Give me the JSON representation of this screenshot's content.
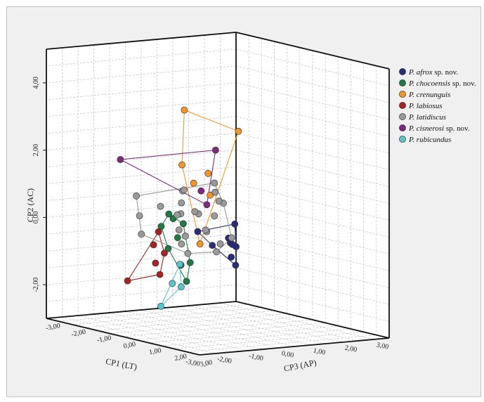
{
  "chart_data": {
    "type": "scatter",
    "projection": "3d",
    "axes": {
      "x": {
        "label": "CP1 (LT)",
        "ticks": [
          "-3,00",
          "-2,00",
          "-1,00",
          "0,00",
          "1,00",
          "2,00",
          "3,00"
        ],
        "range": [
          -3,
          3
        ]
      },
      "y": {
        "label": "CP2 (AC)",
        "ticks": [
          "-2,00",
          "0,00",
          "2,00",
          "4,00"
        ],
        "range": [
          -3,
          5
        ]
      },
      "z": {
        "label": "CP3 (AP)",
        "ticks": [
          "3,00",
          "2,00",
          "1,00",
          "0,00",
          "-1,00",
          "-2,00",
          "-3,00"
        ],
        "range": [
          -3,
          3
        ]
      }
    },
    "grid": true,
    "legend_position": "right",
    "series": [
      {
        "name": "P. afrox",
        "suffix": " sp. nov.",
        "color": "#2b2d78",
        "hull": true,
        "points": [
          [
            0.7,
            0.0,
            -0.2
          ],
          [
            0.5,
            -0.4,
            -0.2
          ],
          [
            0.4,
            -0.5,
            0.0
          ],
          [
            0.5,
            -0.6,
            0.1
          ],
          [
            0.0,
            -1.0,
            0.7
          ],
          [
            -0.3,
            -0.7,
            0.9
          ],
          [
            -0.9,
            -0.3,
            0.9
          ],
          [
            -1.2,
            0.1,
            0.7
          ],
          [
            0.3,
            -0.5,
            0.2
          ]
        ]
      },
      {
        "name": "P. chocoensis",
        "suffix": " sp. nov.",
        "color": "#1f7a46",
        "hull": true,
        "points": [
          [
            -0.9,
            -0.1,
            -1.1
          ],
          [
            -0.5,
            0.2,
            -1.3
          ],
          [
            -0.2,
            0.0,
            -1.5
          ],
          [
            -0.3,
            -0.5,
            -1.2
          ],
          [
            -0.6,
            -0.8,
            -1.2
          ],
          [
            -0.6,
            -1.2,
            -0.7
          ],
          [
            -0.1,
            -1.8,
            -1.1
          ],
          [
            0.5,
            -1.4,
            -1.7
          ],
          [
            0.2,
            -0.2,
            -1.6
          ]
        ]
      },
      {
        "name": "P. crenunguis",
        "suffix": "",
        "color": "#f0962b",
        "hull": true,
        "points": [
          [
            0.8,
            3.0,
            -2.3
          ],
          [
            1.3,
            2.6,
            -0.8
          ],
          [
            0.0,
            0.9,
            -0.3
          ],
          [
            0.0,
            1.6,
            -1.4
          ],
          [
            -0.4,
            -0.5,
            -0.2
          ],
          [
            -0.2,
            1.2,
            -0.7
          ],
          [
            0.1,
            1.5,
            -0.5
          ]
        ]
      },
      {
        "name": "P. labiosus",
        "suffix": "",
        "color": "#a32525",
        "hull": true,
        "points": [
          [
            -0.5,
            -0.4,
            -1.7
          ],
          [
            -0.9,
            -0.7,
            -1.4
          ],
          [
            -1.0,
            -1.2,
            -1.2
          ],
          [
            -0.7,
            -1.6,
            -1.4
          ],
          [
            -1.4,
            -1.8,
            -1.8
          ],
          [
            -0.8,
            -0.9,
            -1.1
          ]
        ]
      },
      {
        "name": "P. latidiscus",
        "suffix": "",
        "color": "#9a9a9a",
        "hull": true,
        "points": [
          [
            -0.8,
            0.6,
            -2.2
          ],
          [
            -0.7,
            0.0,
            -2.2
          ],
          [
            -0.8,
            -0.5,
            -2.0
          ],
          [
            -0.2,
            0.2,
            -1.2
          ],
          [
            0.1,
            0.8,
            -1.5
          ],
          [
            -0.1,
            0.5,
            -1.3
          ],
          [
            -0.5,
            -0.2,
            -0.9
          ],
          [
            -0.5,
            -0.6,
            -0.8
          ],
          [
            -0.3,
            -0.9,
            -0.8
          ],
          [
            -0.3,
            -0.4,
            -0.9
          ],
          [
            0.2,
            0.2,
            -1.0
          ],
          [
            0.3,
            -0.3,
            -0.8
          ],
          [
            0.7,
            0.1,
            -1.0
          ],
          [
            0.5,
            0.6,
            -0.4
          ],
          [
            0.3,
            1.2,
            -0.5
          ],
          [
            0.6,
            -0.4,
            -0.2
          ],
          [
            0.1,
            -0.2,
            -0.6
          ],
          [
            0.6,
            0.6,
            -0.7
          ],
          [
            -0.1,
            0.9,
            -1.2
          ],
          [
            0.4,
            0.9,
            -0.6
          ],
          [
            -0.4,
            0.2,
            -1.1
          ],
          [
            -0.6,
            0.4,
            -1.5
          ],
          [
            0.4,
            -0.6,
            -0.4
          ],
          [
            0.2,
            -0.8,
            -0.3
          ],
          [
            0.0,
            0.3,
            -0.9
          ]
        ]
      },
      {
        "name": "P. cisnerosi",
        "suffix": " sp. nov.",
        "color": "#7b2a7c",
        "hull": true,
        "points": [
          [
            -0.9,
            1.6,
            -2.7
          ],
          [
            0.9,
            2.0,
            -1.2
          ],
          [
            0.2,
            0.9,
            -0.9
          ],
          [
            0.3,
            0.5,
            -0.8
          ]
        ]
      },
      {
        "name": "P. rubicundus",
        "suffix": "",
        "color": "#5bc3cc",
        "hull": true,
        "points": [
          [
            -1.2,
            -1.0,
            0.0
          ],
          [
            -1.4,
            -1.6,
            0.3
          ],
          [
            -1.8,
            -2.2,
            0.0
          ],
          [
            -1.6,
            -1.5,
            0.2
          ]
        ]
      }
    ]
  }
}
